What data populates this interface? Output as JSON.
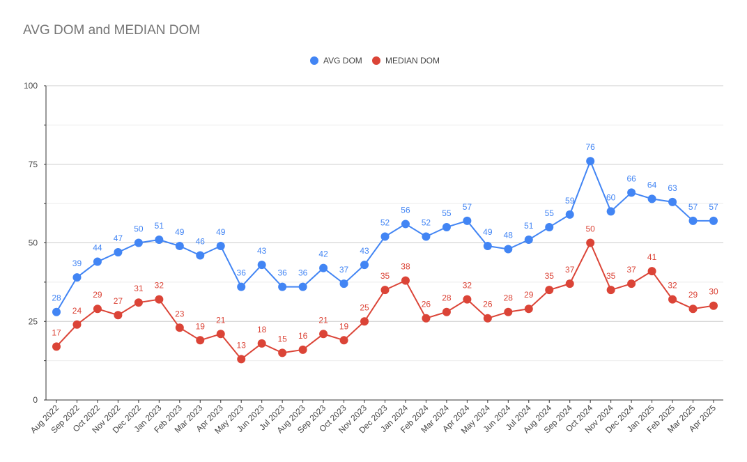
{
  "chart_data": {
    "type": "line",
    "title": "AVG DOM and MEDIAN DOM",
    "xlabel": "",
    "ylabel": "",
    "ylim": [
      0,
      100
    ],
    "yticks": [
      0,
      25,
      50,
      75,
      100
    ],
    "grid": true,
    "legend_position": "top",
    "categories": [
      "Aug 2022",
      "Sep 2022",
      "Oct 2022",
      "Nov 2022",
      "Dec 2022",
      "Jan 2023",
      "Feb 2023",
      "Mar 2023",
      "Apr 2023",
      "May 2023",
      "Jun 2023",
      "Jul 2023",
      "Aug 2023",
      "Sep 2023",
      "Oct 2023",
      "Nov 2023",
      "Dec 2023",
      "Jan 2024",
      "Feb 2024",
      "Mar 2024",
      "Apr 2024",
      "May 2024",
      "Jun 2024",
      "Jul 2024",
      "Aug 2024",
      "Sep 2024",
      "Oct 2024",
      "Nov 2024",
      "Dec 2024",
      "Jan 2025",
      "Feb 2025",
      "Mar 2025",
      "Apr 2025"
    ],
    "series": [
      {
        "name": "AVG DOM",
        "color": "#4285f4",
        "values": [
          28,
          39,
          44,
          47,
          50,
          51,
          49,
          46,
          49,
          36,
          43,
          36,
          36,
          42,
          37,
          43,
          52,
          56,
          52,
          55,
          57,
          49,
          48,
          51,
          55,
          59,
          76,
          60,
          66,
          64,
          63,
          57,
          57
        ]
      },
      {
        "name": "MEDIAN DOM",
        "color": "#db4437",
        "values": [
          17,
          24,
          29,
          27,
          31,
          32,
          23,
          19,
          21,
          13,
          18,
          15,
          16,
          21,
          19,
          25,
          35,
          38,
          26,
          28,
          32,
          26,
          28,
          29,
          35,
          37,
          50,
          35,
          37,
          41,
          32,
          29,
          30
        ]
      }
    ]
  }
}
